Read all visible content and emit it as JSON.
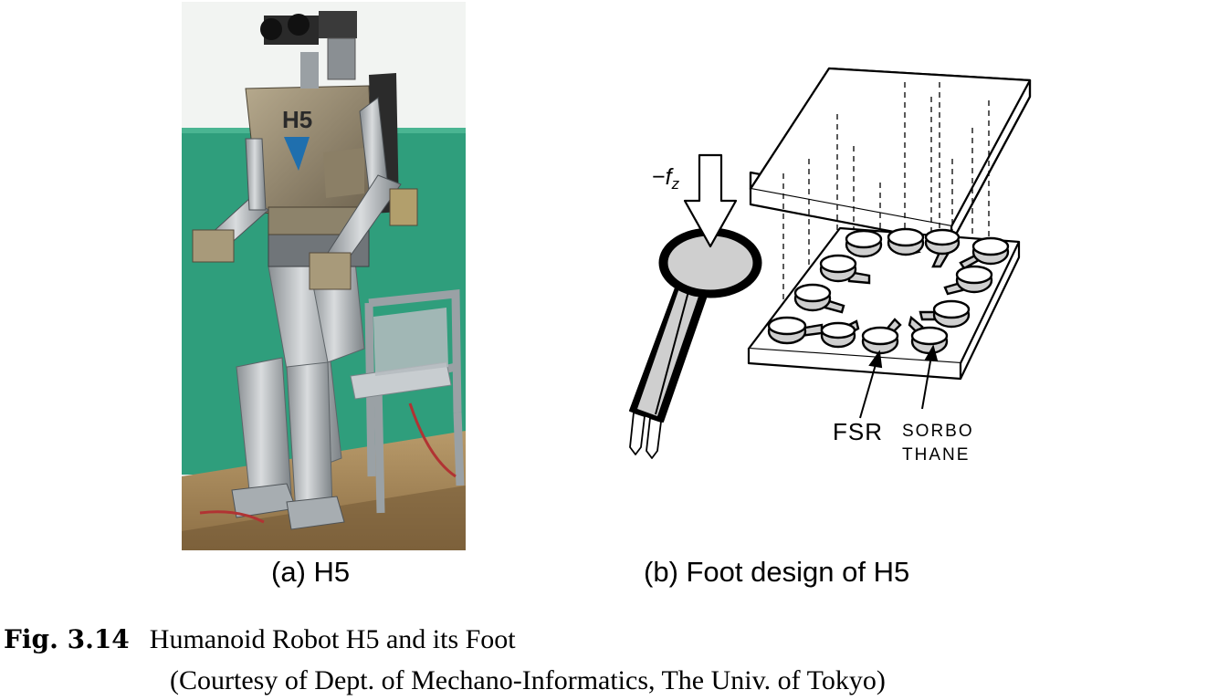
{
  "figure": {
    "panel_a": {
      "label": "(a) H5",
      "torso_text": "H5"
    },
    "panel_b": {
      "label": "(b) Foot design of H5",
      "force_label_sign": "−",
      "force_label_var": "f",
      "force_label_sub": "z",
      "fsr_label": "FSR",
      "sorbothane_line1": "SORBO",
      "sorbothane_line2": "THANE"
    },
    "caption": {
      "number": "Fig. 3.14",
      "title": "Humanoid Robot H5 and its Foot",
      "credit": "(Courtesy of Dept. of Mechano-Informatics, The Univ. of Tokyo)"
    }
  }
}
